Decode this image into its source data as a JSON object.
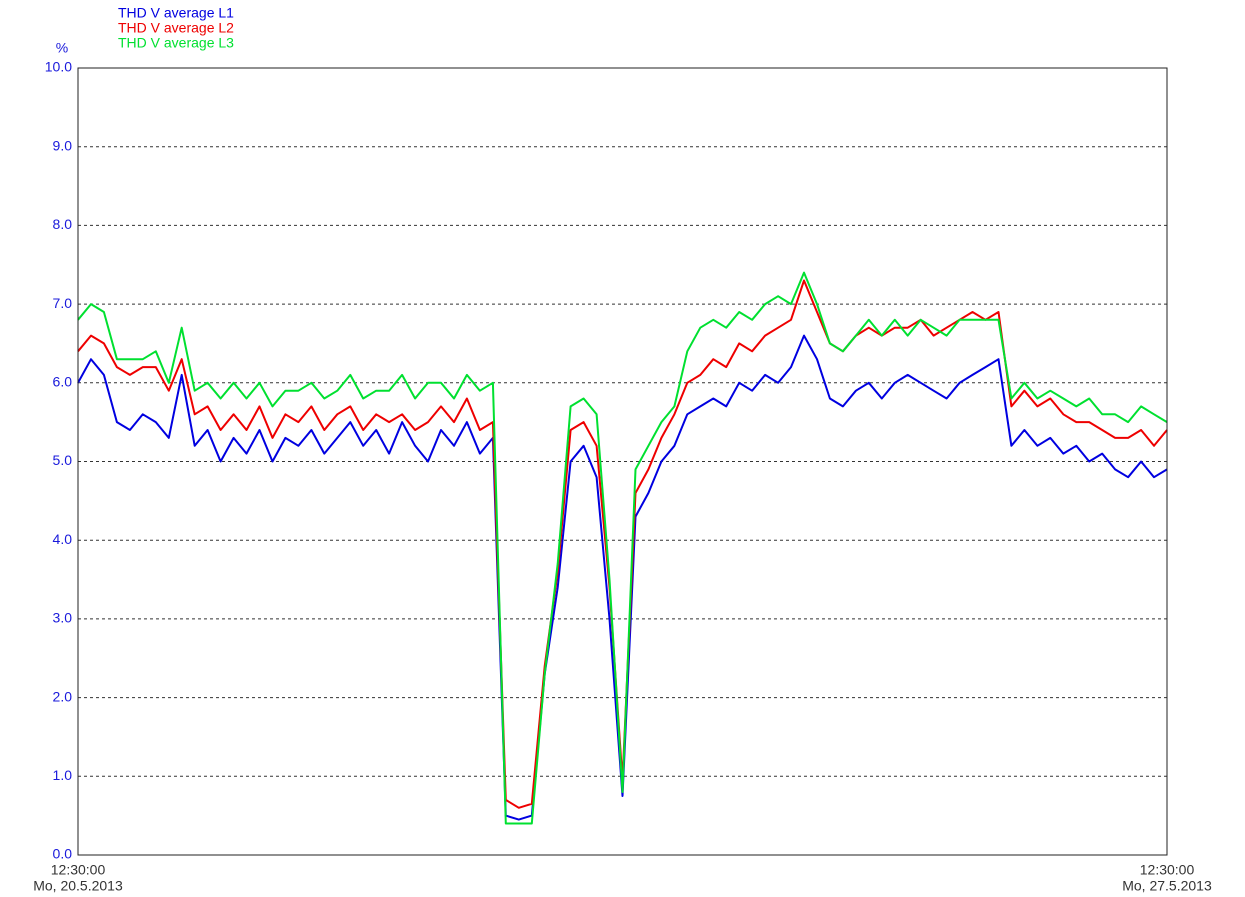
{
  "chart_data": {
    "type": "line",
    "y_unit": "%",
    "x_labels": [
      {
        "time": "12:30:00",
        "date": "Mo, 20.5.2013"
      },
      {
        "time": "12:30:00",
        "date": "Mo, 27.5.2013"
      }
    ],
    "ylim": [
      0,
      10
    ],
    "yticks": [
      {
        "value": 0,
        "label": "0.0"
      },
      {
        "value": 1,
        "label": "1.0"
      },
      {
        "value": 2,
        "label": "2.0"
      },
      {
        "value": 3,
        "label": "3.0"
      },
      {
        "value": 4,
        "label": "4.0"
      },
      {
        "value": 5,
        "label": "5.0"
      },
      {
        "value": 6,
        "label": "6.0"
      },
      {
        "value": 7,
        "label": "7.0"
      },
      {
        "value": 8,
        "label": "8.0"
      },
      {
        "value": 9,
        "label": "9.0"
      },
      {
        "value": 10,
        "label": "10.0"
      }
    ],
    "grid": true,
    "series": [
      {
        "name": "THD V average L1",
        "color": "#0000e0",
        "values": [
          6.0,
          6.3,
          6.1,
          5.5,
          5.4,
          5.6,
          5.5,
          5.3,
          6.1,
          5.2,
          5.4,
          5.0,
          5.3,
          5.1,
          5.4,
          5.0,
          5.3,
          5.2,
          5.4,
          5.1,
          5.3,
          5.5,
          5.2,
          5.4,
          5.1,
          5.5,
          5.2,
          5.0,
          5.4,
          5.2,
          5.5,
          5.1,
          5.3,
          0.5,
          0.45,
          0.5,
          2.3,
          3.4,
          5.0,
          5.2,
          4.8,
          3.0,
          0.75,
          4.3,
          4.6,
          5.0,
          5.2,
          5.6,
          5.7,
          5.8,
          5.7,
          6.0,
          5.9,
          6.1,
          6.0,
          6.2,
          6.6,
          6.3,
          5.8,
          5.7,
          5.9,
          6.0,
          5.8,
          6.0,
          6.1,
          6.0,
          5.9,
          5.8,
          6.0,
          6.1,
          6.2,
          6.3,
          5.2,
          5.4,
          5.2,
          5.3,
          5.1,
          5.2,
          5.0,
          5.1,
          4.9,
          4.8,
          5.0,
          4.8,
          4.9
        ]
      },
      {
        "name": "THD V average L2",
        "color": "#ee0000",
        "values": [
          6.4,
          6.6,
          6.5,
          6.2,
          6.1,
          6.2,
          6.2,
          5.9,
          6.3,
          5.6,
          5.7,
          5.4,
          5.6,
          5.4,
          5.7,
          5.3,
          5.6,
          5.5,
          5.7,
          5.4,
          5.6,
          5.7,
          5.4,
          5.6,
          5.5,
          5.6,
          5.4,
          5.5,
          5.7,
          5.5,
          5.8,
          5.4,
          5.5,
          0.7,
          0.6,
          0.65,
          2.4,
          3.6,
          5.4,
          5.5,
          5.2,
          3.4,
          0.95,
          4.6,
          4.9,
          5.3,
          5.6,
          6.0,
          6.1,
          6.3,
          6.2,
          6.5,
          6.4,
          6.6,
          6.7,
          6.8,
          7.3,
          6.9,
          6.5,
          6.4,
          6.6,
          6.7,
          6.6,
          6.7,
          6.7,
          6.8,
          6.6,
          6.7,
          6.8,
          6.9,
          6.8,
          6.9,
          5.7,
          5.9,
          5.7,
          5.8,
          5.6,
          5.5,
          5.5,
          5.4,
          5.3,
          5.3,
          5.4,
          5.2,
          5.4
        ]
      },
      {
        "name": "THD V average L3",
        "color": "#00e030",
        "values": [
          6.8,
          7.0,
          6.9,
          6.3,
          6.3,
          6.3,
          6.4,
          6.0,
          6.7,
          5.9,
          6.0,
          5.8,
          6.0,
          5.8,
          6.0,
          5.7,
          5.9,
          5.9,
          6.0,
          5.8,
          5.9,
          6.1,
          5.8,
          5.9,
          5.9,
          6.1,
          5.8,
          6.0,
          6.0,
          5.8,
          6.1,
          5.9,
          6.0,
          0.4,
          0.4,
          0.4,
          2.3,
          3.7,
          5.7,
          5.8,
          5.6,
          3.5,
          0.8,
          4.9,
          5.2,
          5.5,
          5.7,
          6.4,
          6.7,
          6.8,
          6.7,
          6.9,
          6.8,
          7.0,
          7.1,
          7.0,
          7.4,
          7.0,
          6.5,
          6.4,
          6.6,
          6.8,
          6.6,
          6.8,
          6.6,
          6.8,
          6.7,
          6.6,
          6.8,
          6.8,
          6.8,
          6.8,
          5.8,
          6.0,
          5.8,
          5.9,
          5.8,
          5.7,
          5.8,
          5.6,
          5.6,
          5.5,
          5.7,
          5.6,
          5.5
        ]
      }
    ]
  }
}
